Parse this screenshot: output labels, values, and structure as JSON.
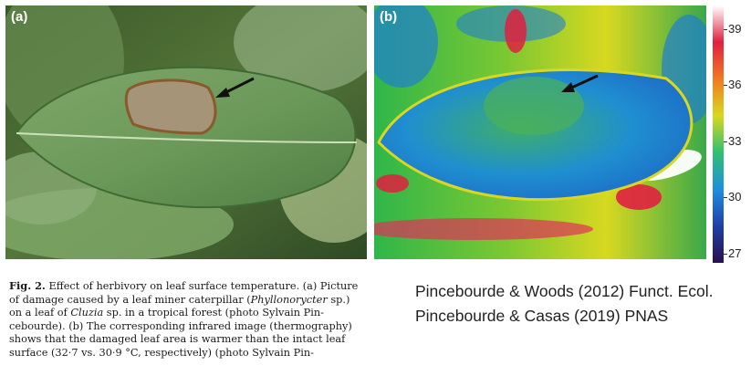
{
  "panels": {
    "a": {
      "label": "(a)"
    },
    "b": {
      "label": "(b)"
    }
  },
  "colorbar": {
    "ticks": [
      "39",
      "36",
      "33",
      "30",
      "27"
    ],
    "colors": [
      "#2a0f4f",
      "#1f3fa8",
      "#1e8fe0",
      "#2fc070",
      "#d8d820",
      "#f07a20",
      "#e02040",
      "#ffffff"
    ]
  },
  "caption": {
    "fig_label": "Fig. 2.",
    "line1": "Effect of herbivory on leaf surface temperature. (a) Picture",
    "line2a": "of damage caused by a leaf miner caterpillar (",
    "line2_species": "Phyllonorycter",
    "line2b": " sp.)",
    "line3a": "on a leaf of ",
    "line3_genus": "Cluzia",
    "line3b": " sp. in a tropical forest (photo Sylvain Pin-",
    "line4": "cebourde). (b) The corresponding infrared image (thermography)",
    "line5": "shows that the damaged leaf area is warmer than the intact leaf",
    "line6": "surface (32·7 vs. 30·9 °C, respectively) (photo Sylvain Pin-"
  },
  "citations": {
    "first": "Pincebourde & Woods (2012) Funct. Ecol.",
    "second": "Pincebourde & Casas (2019) PNAS"
  }
}
